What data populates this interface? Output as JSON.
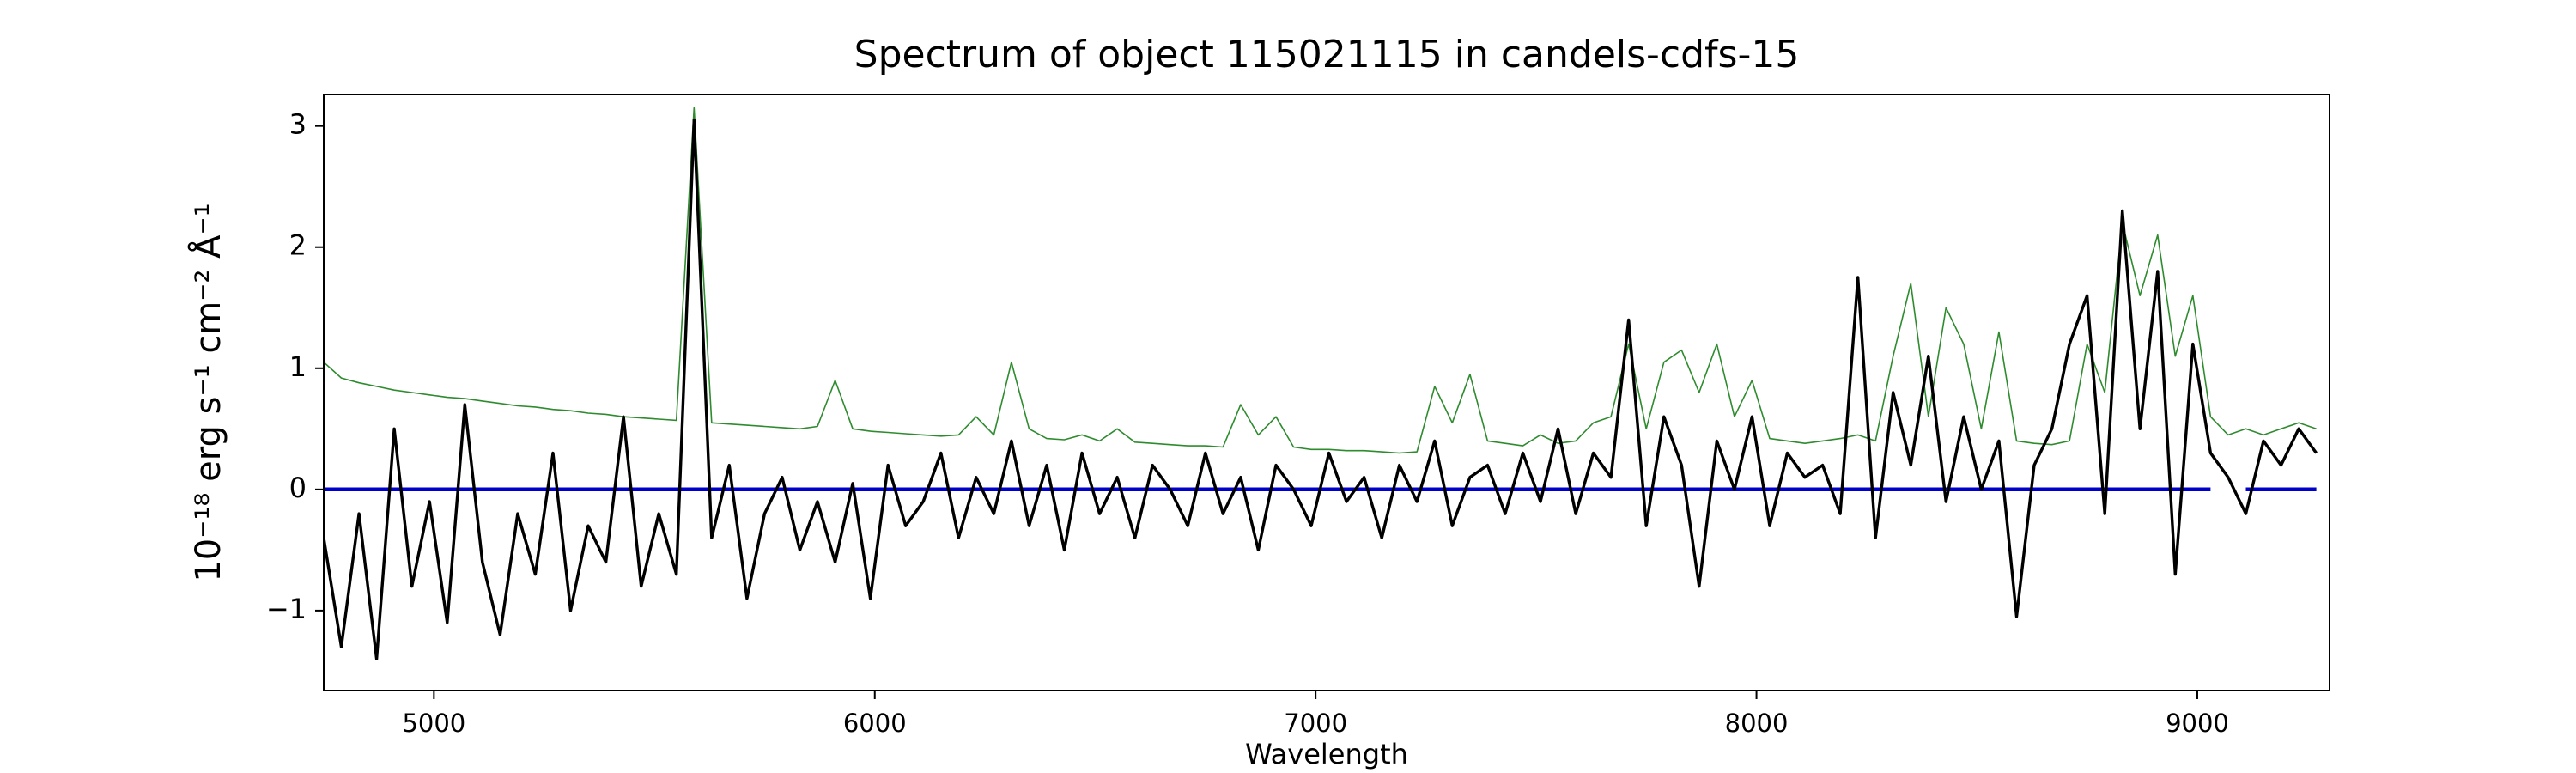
{
  "chart_data": {
    "type": "line",
    "title": "Spectrum of object 115021115 in candels-cdfs-15",
    "xlabel": "Wavelength",
    "ylabel": "10⁻¹⁸ erg s⁻¹ cm⁻² Å⁻¹",
    "xlim": [
      4750,
      9300
    ],
    "ylim": [
      -1.66,
      3.26
    ],
    "xticks": [
      5000,
      6000,
      7000,
      8000,
      9000
    ],
    "yticks": [
      {
        "value": -1,
        "label": "−1"
      },
      0,
      1,
      2,
      3
    ],
    "grid": false,
    "x": [
      4750,
      4790,
      4830,
      4870,
      4910,
      4950,
      4990,
      5030,
      5070,
      5110,
      5150,
      5190,
      5230,
      5270,
      5310,
      5350,
      5390,
      5430,
      5470,
      5510,
      5550,
      5590,
      5630,
      5670,
      5710,
      5750,
      5790,
      5830,
      5870,
      5910,
      5950,
      5990,
      6030,
      6070,
      6110,
      6150,
      6190,
      6230,
      6270,
      6310,
      6350,
      6390,
      6430,
      6470,
      6510,
      6550,
      6590,
      6630,
      6670,
      6710,
      6750,
      6790,
      6830,
      6870,
      6910,
      6950,
      6990,
      7030,
      7070,
      7110,
      7150,
      7190,
      7230,
      7270,
      7310,
      7350,
      7390,
      7430,
      7470,
      7510,
      7550,
      7590,
      7630,
      7670,
      7710,
      7750,
      7790,
      7830,
      7870,
      7910,
      7950,
      7990,
      8030,
      8070,
      8110,
      8150,
      8190,
      8230,
      8270,
      8310,
      8350,
      8390,
      8430,
      8470,
      8510,
      8550,
      8590,
      8630,
      8670,
      8710,
      8750,
      8790,
      8830,
      8870,
      8910,
      8950,
      8990,
      9030,
      9070,
      9110,
      9150,
      9190,
      9230,
      9270
    ],
    "series": [
      {
        "color": "#2e8b2e",
        "width": 1.6,
        "values": [
          1.05,
          0.92,
          0.88,
          0.85,
          0.82,
          0.8,
          0.78,
          0.76,
          0.75,
          0.73,
          0.71,
          0.69,
          0.68,
          0.66,
          0.65,
          0.63,
          0.62,
          0.6,
          0.59,
          0.58,
          0.57,
          3.15,
          0.55,
          0.54,
          0.53,
          0.52,
          0.51,
          0.5,
          0.52,
          0.9,
          0.5,
          0.48,
          0.47,
          0.46,
          0.45,
          0.44,
          0.45,
          0.6,
          0.45,
          1.05,
          0.5,
          0.42,
          0.41,
          0.45,
          0.4,
          0.5,
          0.39,
          0.38,
          0.37,
          0.36,
          0.36,
          0.35,
          0.7,
          0.45,
          0.6,
          0.35,
          0.33,
          0.33,
          0.32,
          0.32,
          0.31,
          0.3,
          0.31,
          0.85,
          0.55,
          0.95,
          0.4,
          0.38,
          0.36,
          0.45,
          0.38,
          0.4,
          0.55,
          0.6,
          1.2,
          0.5,
          1.05,
          1.15,
          0.8,
          1.2,
          0.6,
          0.9,
          0.42,
          0.4,
          0.38,
          0.4,
          0.42,
          0.45,
          0.4,
          1.1,
          1.7,
          0.6,
          1.5,
          1.2,
          0.5,
          1.3,
          0.4,
          0.38,
          0.37,
          0.4,
          1.2,
          0.8,
          2.2,
          1.6,
          2.1,
          1.1,
          1.6,
          0.6,
          0.45,
          0.5,
          0.45,
          0.5,
          0.55,
          0.5
        ]
      },
      {
        "color": "#0000cc",
        "width": 4.5,
        "values": [
          0,
          0,
          0,
          0,
          0,
          0,
          0,
          0,
          0,
          0,
          0,
          0,
          0,
          0,
          0,
          0,
          0,
          0,
          0,
          0,
          0,
          0,
          0,
          0,
          0,
          0,
          0,
          0,
          0,
          0,
          0,
          0,
          0,
          0,
          0,
          0,
          0,
          0,
          0,
          0,
          0,
          0,
          0,
          0,
          0,
          0,
          0,
          0,
          0,
          0,
          0,
          0,
          0,
          0,
          0,
          0,
          0,
          0,
          0,
          0,
          0,
          0,
          0,
          0,
          0,
          0,
          0,
          0,
          0,
          0,
          0,
          0,
          0,
          0,
          0,
          0,
          0,
          0,
          0,
          0,
          0,
          0,
          0,
          0,
          0,
          0,
          0,
          0,
          0,
          0,
          0,
          0,
          0,
          0,
          0,
          0,
          0,
          0,
          0,
          0,
          0,
          0,
          0,
          0,
          0,
          0,
          0,
          0,
          null,
          0,
          0,
          0,
          0,
          0
        ]
      },
      {
        "color": "#000000",
        "width": 3.4,
        "values": [
          -0.4,
          -1.3,
          -0.2,
          -1.4,
          0.5,
          -0.8,
          -0.1,
          -1.1,
          0.7,
          -0.6,
          -1.2,
          -0.2,
          -0.7,
          0.3,
          -1.0,
          -0.3,
          -0.6,
          0.6,
          -0.8,
          -0.2,
          -0.7,
          3.05,
          -0.4,
          0.2,
          -0.9,
          -0.2,
          0.1,
          -0.5,
          -0.1,
          -0.6,
          0.05,
          -0.9,
          0.2,
          -0.3,
          -0.1,
          0.3,
          -0.4,
          0.1,
          -0.2,
          0.4,
          -0.3,
          0.2,
          -0.5,
          0.3,
          -0.2,
          0.1,
          -0.4,
          0.2,
          0.0,
          -0.3,
          0.3,
          -0.2,
          0.1,
          -0.5,
          0.2,
          0.0,
          -0.3,
          0.3,
          -0.1,
          0.1,
          -0.4,
          0.2,
          -0.1,
          0.4,
          -0.3,
          0.1,
          0.2,
          -0.2,
          0.3,
          -0.1,
          0.5,
          -0.2,
          0.3,
          0.1,
          1.4,
          -0.3,
          0.6,
          0.2,
          -0.8,
          0.4,
          0.0,
          0.6,
          -0.3,
          0.3,
          0.1,
          0.2,
          -0.2,
          1.75,
          -0.4,
          0.8,
          0.2,
          1.1,
          -0.1,
          0.6,
          0.0,
          0.4,
          -1.05,
          0.2,
          0.5,
          1.2,
          1.6,
          -0.2,
          2.3,
          0.5,
          1.8,
          -0.7,
          1.2,
          0.3,
          0.1,
          -0.2,
          0.4,
          0.2,
          0.5,
          0.3
        ]
      }
    ]
  }
}
